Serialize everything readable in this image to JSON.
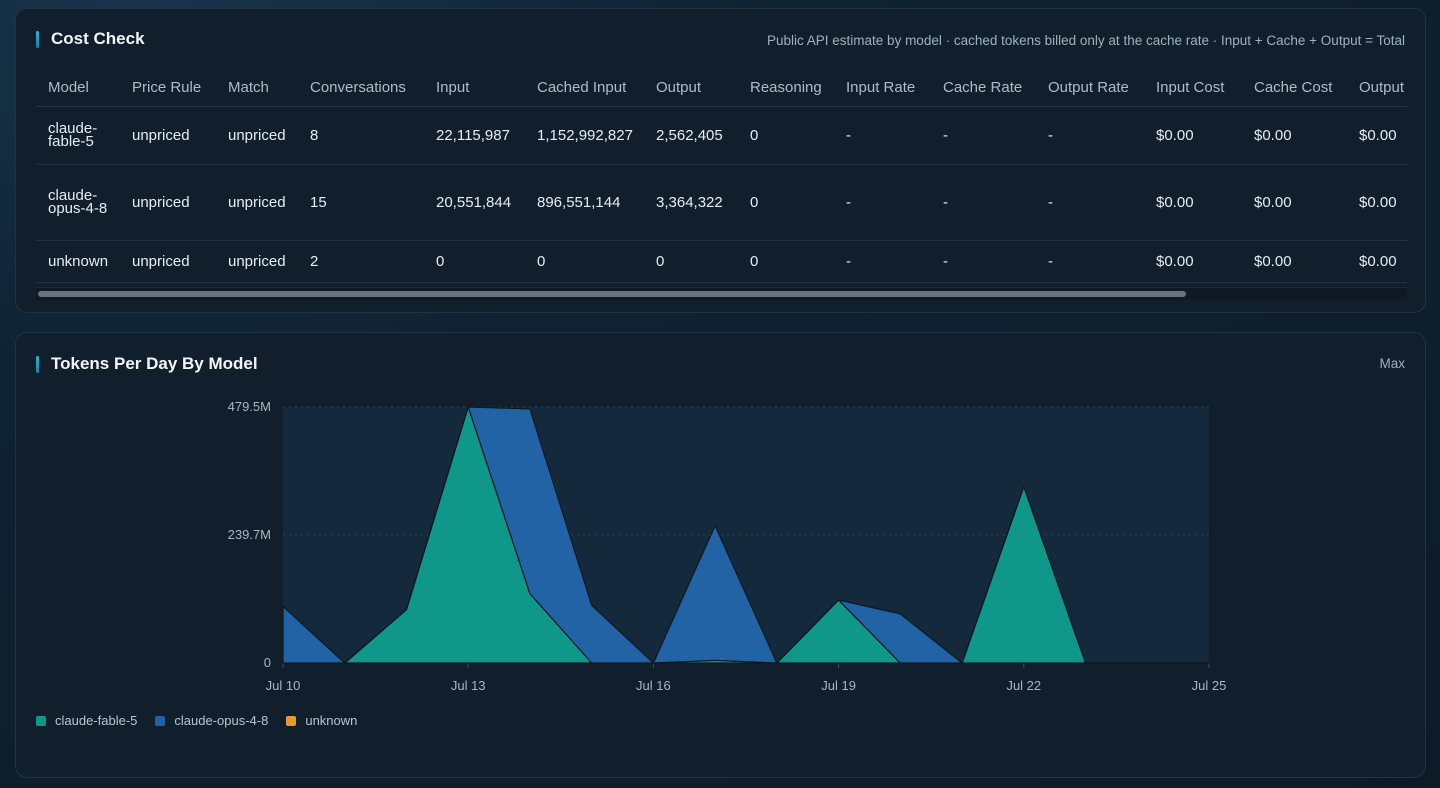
{
  "cost_check": {
    "title": "Cost Check",
    "note": "Public API estimate by model · cached tokens billed only at the cache rate · Input + Cache + Output = Total",
    "columns": [
      "Model",
      "Price Rule",
      "Match",
      "Conversations",
      "Input",
      "Cached Input",
      "Output",
      "Reasoning",
      "Input Rate",
      "Cache Rate",
      "Output Rate",
      "Input Cost",
      "Cache Cost",
      "Output"
    ],
    "rows": [
      [
        "claude-fable-5",
        "unpriced",
        "unpriced",
        "8",
        "22,115,987",
        "1,152,992,827",
        "2,562,405",
        "0",
        "-",
        "-",
        "-",
        "$0.00",
        "$0.00",
        "$0.00"
      ],
      [
        "claude-opus-4-8",
        "unpriced",
        "unpriced",
        "15",
        "20,551,844",
        "896,551,144",
        "3,364,322",
        "0",
        "-",
        "-",
        "-",
        "$0.00",
        "$0.00",
        "$0.00"
      ],
      [
        "unknown",
        "unpriced",
        "unpriced",
        "2",
        "0",
        "0",
        "0",
        "0",
        "-",
        "-",
        "-",
        "$0.00",
        "$0.00",
        "$0.00"
      ]
    ]
  },
  "tokens_per_day": {
    "title": "Tokens Per Day By Model",
    "mode_label": "Max"
  },
  "chart_data": {
    "type": "area",
    "stacked": true,
    "x": [
      "Jul 10",
      "Jul 11",
      "Jul 12",
      "Jul 13",
      "Jul 14",
      "Jul 15",
      "Jul 16",
      "Jul 17",
      "Jul 18",
      "Jul 19",
      "Jul 20",
      "Jul 21",
      "Jul 22",
      "Jul 23",
      "Jul 24",
      "Jul 25"
    ],
    "x_tick_labels": [
      "Jul 10",
      "Jul 13",
      "Jul 16",
      "Jul 19",
      "Jul 22",
      "Jul 25"
    ],
    "y_tick_labels": [
      "0",
      "239.7M",
      "479.5M"
    ],
    "ylim": [
      0,
      479.5
    ],
    "y_unit": "M",
    "series": [
      {
        "name": "claude-fable-5",
        "color": "#0f9889",
        "values": [
          0,
          0,
          100,
          479.5,
          130,
          0,
          0,
          5,
          0,
          118,
          0,
          0,
          330,
          0,
          0,
          0
        ]
      },
      {
        "name": "claude-opus-4-8",
        "color": "#2263a6",
        "values": [
          106,
          0,
          0,
          0,
          346,
          108,
          0,
          252,
          0,
          0,
          92,
          0,
          0,
          0,
          0,
          0
        ]
      },
      {
        "name": "unknown",
        "color": "#e59b2b",
        "values": [
          0,
          0,
          0,
          0,
          0,
          0,
          0,
          0,
          0,
          0,
          0,
          0,
          0,
          0,
          0,
          0
        ]
      }
    ],
    "grid": true,
    "legend_position": "bottom-left"
  }
}
